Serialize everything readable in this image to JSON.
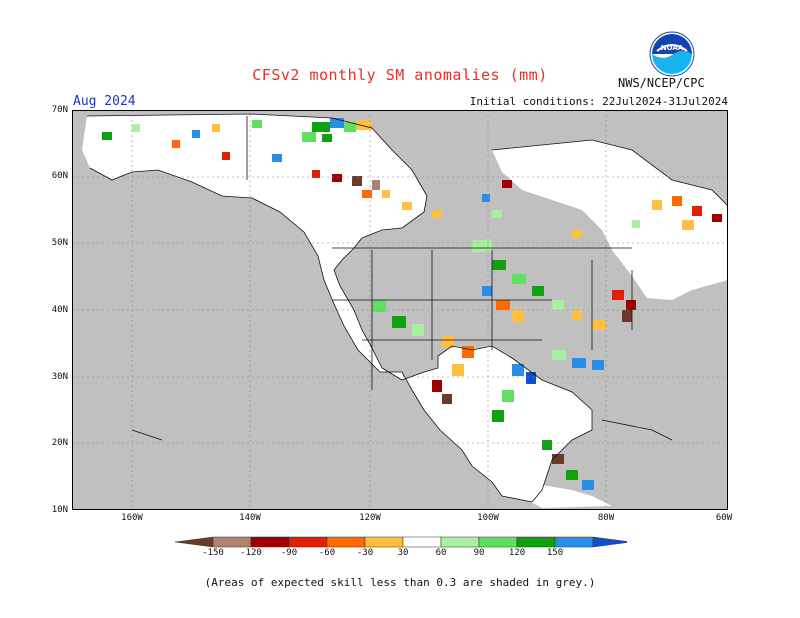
{
  "header": {
    "title": "CFSv2 monthly SM anomalies (mm)",
    "month": "Aug 2024",
    "initial_conditions": "Initial conditions: 22Jul2024-31Jul2024",
    "agency": "NWS/NCEP/CPC",
    "logo_text": "NOAA"
  },
  "axes": {
    "lat_labels": [
      "70N",
      "60N",
      "50N",
      "40N",
      "30N",
      "20N",
      "10N"
    ],
    "lon_labels": [
      "160W",
      "140W",
      "120W",
      "100W",
      "80W",
      "60W"
    ]
  },
  "legend": {
    "labels": [
      "-150",
      "-120",
      "-90",
      "-60",
      "-30",
      "30",
      "60",
      "90",
      "120",
      "150"
    ],
    "colors": [
      "#6b3b2a",
      "#b08070",
      "#a00000",
      "#e02000",
      "#ff6a00",
      "#ffbf40",
      "#ffffff",
      "#a8f0a0",
      "#60e060",
      "#10a010",
      "#2a8de8",
      "#1050d0"
    ]
  },
  "footnote": "(Areas of expected skill less than 0.3 are shaded in grey.)",
  "colors": {
    "unskilled_grey": "#c0c0c0",
    "title_red": "#e0302a",
    "month_blue": "#2233bb"
  }
}
